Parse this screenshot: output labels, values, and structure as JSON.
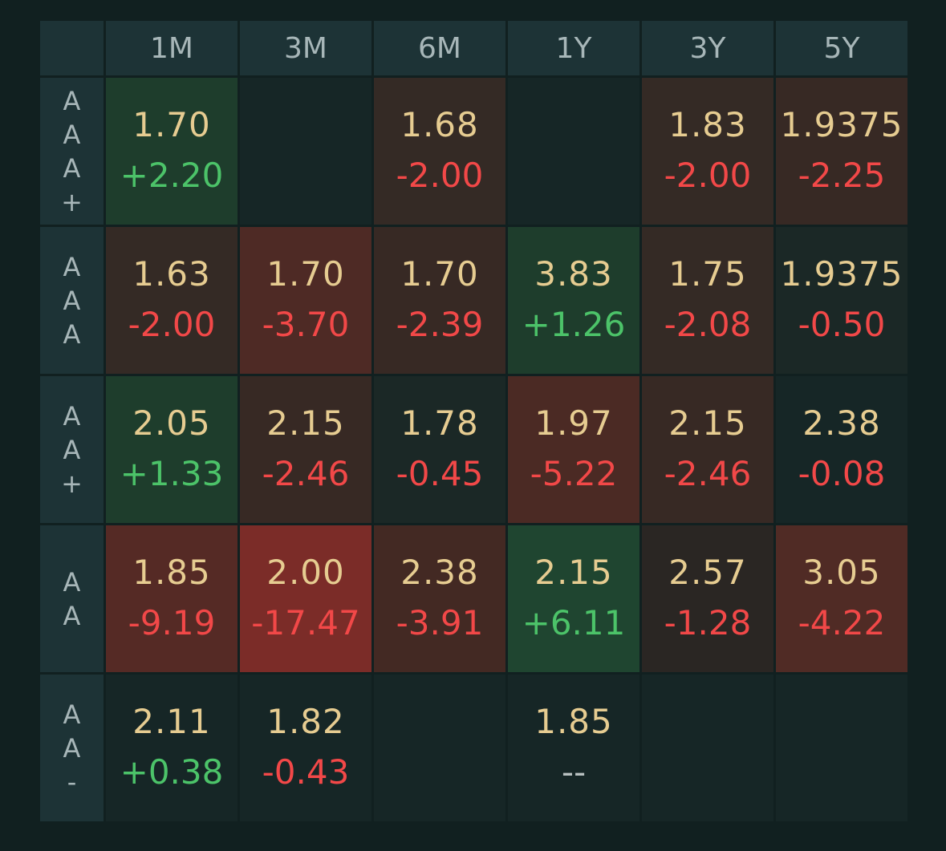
{
  "colors": {
    "background": "#112020",
    "header_bg": "#1d3336",
    "price_text": "#e6cc91",
    "positive_text": "#4cc369",
    "negative_text": "#f24848",
    "empty_cell": "#162626"
  },
  "table": {
    "columns": [
      "1M",
      "3M",
      "6M",
      "1Y",
      "3Y",
      "5Y"
    ],
    "rows": [
      {
        "label": [
          "A",
          "A",
          "A",
          "+"
        ],
        "cells": [
          {
            "price": "1.70",
            "change": "+2.20",
            "bg": "#1e3d2c"
          },
          {
            "price": "",
            "change": "",
            "bg": "#162626"
          },
          {
            "price": "1.68",
            "change": "-2.00",
            "bg": "#342a25"
          },
          {
            "price": "",
            "change": "",
            "bg": "#162626"
          },
          {
            "price": "1.83",
            "change": "-2.00",
            "bg": "#342a25"
          },
          {
            "price": "1.9375",
            "change": "-2.25",
            "bg": "#372924"
          }
        ]
      },
      {
        "label": [
          "A",
          "A",
          "A"
        ],
        "cells": [
          {
            "price": "1.63",
            "change": "-2.00",
            "bg": "#342a25"
          },
          {
            "price": "1.70",
            "change": "-3.70",
            "bg": "#4e2a25"
          },
          {
            "price": "1.70",
            "change": "-2.39",
            "bg": "#372924"
          },
          {
            "price": "3.83",
            "change": "+1.26",
            "bg": "#1e3d2c"
          },
          {
            "price": "1.75",
            "change": "-2.08",
            "bg": "#342a25"
          },
          {
            "price": "1.9375",
            "change": "-0.50",
            "bg": "#1b2826"
          }
        ]
      },
      {
        "label": [
          "A",
          "A",
          "+"
        ],
        "cells": [
          {
            "price": "2.05",
            "change": "+1.33",
            "bg": "#1e3d2c"
          },
          {
            "price": "2.15",
            "change": "-2.46",
            "bg": "#372924"
          },
          {
            "price": "1.78",
            "change": "-0.45",
            "bg": "#1b2826"
          },
          {
            "price": "1.97",
            "change": "-5.22",
            "bg": "#4b2a24"
          },
          {
            "price": "2.15",
            "change": "-2.46",
            "bg": "#372924"
          },
          {
            "price": "2.38",
            "change": "-0.08",
            "bg": "#162626"
          }
        ]
      },
      {
        "label": [
          "A",
          "A"
        ],
        "cells": [
          {
            "price": "1.85",
            "change": "-9.19",
            "bg": "#552a25"
          },
          {
            "price": "2.00",
            "change": "-17.47",
            "bg": "#7b2c28"
          },
          {
            "price": "2.38",
            "change": "-3.91",
            "bg": "#432923"
          },
          {
            "price": "2.15",
            "change": "+6.11",
            "bg": "#1f4530"
          },
          {
            "price": "2.57",
            "change": "-1.28",
            "bg": "#2a2623"
          },
          {
            "price": "3.05",
            "change": "-4.22",
            "bg": "#502b25"
          }
        ]
      },
      {
        "label": [
          "A",
          "A",
          "-"
        ],
        "cells": [
          {
            "price": "2.11",
            "change": "+0.38",
            "bg": "#162626"
          },
          {
            "price": "1.82",
            "change": "-0.43",
            "bg": "#162626"
          },
          {
            "price": "",
            "change": "",
            "bg": "#162626"
          },
          {
            "price": "1.85",
            "change": "--",
            "bg": "#162626"
          },
          {
            "price": "",
            "change": "",
            "bg": "#162626"
          },
          {
            "price": "",
            "change": "",
            "bg": "#162626"
          }
        ]
      }
    ]
  }
}
